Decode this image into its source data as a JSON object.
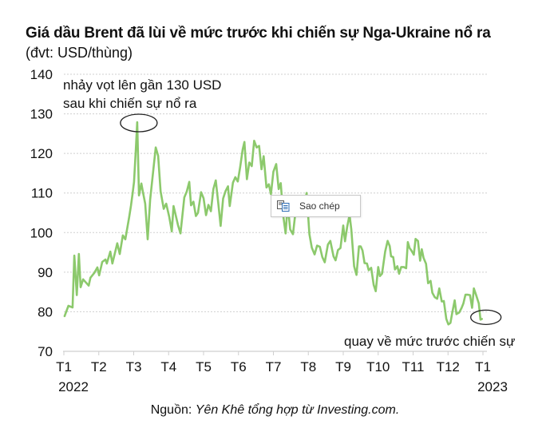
{
  "title": "Giá dầu Brent đã lùi về mức trước khi chiến sự Nga-Ukraine nổ ra",
  "subtitle": "(đvt: USD/thùng)",
  "source_prefix": "Nguồn: ",
  "source_text": "Yên Khê tổng hợp từ Investing.com.",
  "context_menu": {
    "icon": "copy-icon",
    "label": "Sao chép"
  },
  "chart_data": {
    "type": "line",
    "title": "Giá dầu Brent đã lùi về mức trước khi chiến sự Nga-Ukraine nổ ra",
    "ylabel": "(đvt: USD/thùng)",
    "xlabel": "",
    "ylim": [
      70,
      140
    ],
    "yticks": [
      70,
      80,
      90,
      100,
      110,
      120,
      130,
      140
    ],
    "xlim_months": [
      0,
      12
    ],
    "xticks": [
      {
        "m": 0,
        "label": "T1",
        "year": "2022"
      },
      {
        "m": 1,
        "label": "T2"
      },
      {
        "m": 2,
        "label": "T3"
      },
      {
        "m": 3,
        "label": "T4"
      },
      {
        "m": 4,
        "label": "T5"
      },
      {
        "m": 5,
        "label": "T6"
      },
      {
        "m": 6,
        "label": "T7"
      },
      {
        "m": 7,
        "label": "T8"
      },
      {
        "m": 8,
        "label": "T9"
      },
      {
        "m": 9,
        "label": "T10"
      },
      {
        "m": 10,
        "label": "T11"
      },
      {
        "m": 11,
        "label": "T12"
      },
      {
        "m": 12,
        "label": "T1",
        "year": "2023"
      }
    ],
    "grid": true,
    "series": [
      {
        "name": "Brent",
        "color": "#8cc96c",
        "points": [
          [
            0.02,
            78.9
          ],
          [
            0.13,
            81.5
          ],
          [
            0.25,
            81.1
          ],
          [
            0.3,
            94.2
          ],
          [
            0.37,
            84.2
          ],
          [
            0.43,
            94.6
          ],
          [
            0.48,
            86.2
          ],
          [
            0.55,
            88.2
          ],
          [
            0.71,
            86.6
          ],
          [
            0.76,
            88.6
          ],
          [
            0.87,
            89.8
          ],
          [
            0.96,
            91.2
          ],
          [
            1.01,
            89.2
          ],
          [
            1.1,
            92.6
          ],
          [
            1.19,
            93.2
          ],
          [
            1.23,
            92.2
          ],
          [
            1.33,
            95.2
          ],
          [
            1.39,
            92.2
          ],
          [
            1.53,
            97.3
          ],
          [
            1.6,
            94.6
          ],
          [
            1.69,
            99.3
          ],
          [
            1.76,
            98.3
          ],
          [
            1.87,
            103.9
          ],
          [
            1.92,
            106.7
          ],
          [
            1.97,
            110.0
          ],
          [
            2.01,
            112.8
          ],
          [
            2.06,
            120.8
          ],
          [
            2.1,
            127.9
          ],
          [
            2.15,
            109.4
          ],
          [
            2.22,
            112.4
          ],
          [
            2.26,
            110.4
          ],
          [
            2.33,
            107.3
          ],
          [
            2.4,
            98.3
          ],
          [
            2.47,
            108.3
          ],
          [
            2.58,
            117.4
          ],
          [
            2.63,
            121.5
          ],
          [
            2.7,
            119.4
          ],
          [
            2.77,
            110.4
          ],
          [
            2.86,
            106.0
          ],
          [
            2.93,
            107.3
          ],
          [
            3.02,
            103.9
          ],
          [
            3.09,
            100.3
          ],
          [
            3.14,
            106.7
          ],
          [
            3.2,
            104.5
          ],
          [
            3.27,
            101.8
          ],
          [
            3.34,
            99.8
          ],
          [
            3.45,
            108.9
          ],
          [
            3.52,
            110.4
          ],
          [
            3.59,
            112.8
          ],
          [
            3.64,
            106.9
          ],
          [
            3.71,
            107.8
          ],
          [
            3.78,
            104.2
          ],
          [
            3.84,
            105.0
          ],
          [
            3.93,
            110.2
          ],
          [
            4.0,
            108.7
          ],
          [
            4.07,
            104.4
          ],
          [
            4.14,
            107.0
          ],
          [
            4.21,
            105.4
          ],
          [
            4.28,
            111.0
          ],
          [
            4.35,
            113.2
          ],
          [
            4.42,
            107.5
          ],
          [
            4.49,
            101.7
          ],
          [
            4.56,
            108.6
          ],
          [
            4.63,
            110.5
          ],
          [
            4.7,
            111.7
          ],
          [
            4.75,
            106.7
          ],
          [
            4.84,
            112.6
          ],
          [
            4.91,
            114.0
          ],
          [
            4.98,
            112.9
          ],
          [
            5.05,
            116.6
          ],
          [
            5.12,
            121.0
          ],
          [
            5.17,
            122.9
          ],
          [
            5.24,
            113.5
          ],
          [
            5.31,
            117.7
          ],
          [
            5.38,
            116.8
          ],
          [
            5.45,
            123.2
          ],
          [
            5.52,
            121.5
          ],
          [
            5.59,
            121.9
          ],
          [
            5.66,
            116.0
          ],
          [
            5.72,
            119.3
          ],
          [
            5.8,
            111.4
          ],
          [
            5.87,
            112.2
          ],
          [
            5.93,
            109.7
          ],
          [
            6.0,
            115.4
          ],
          [
            6.08,
            117.3
          ],
          [
            6.15,
            111.0
          ],
          [
            6.21,
            112.5
          ],
          [
            6.28,
            104.3
          ],
          [
            6.35,
            99.8
          ],
          [
            6.41,
            107.2
          ],
          [
            6.48,
            100.8
          ],
          [
            6.56,
            99.6
          ],
          [
            6.62,
            104.2
          ],
          [
            6.7,
            106.7
          ],
          [
            6.79,
            104.7
          ],
          [
            6.87,
            106.4
          ],
          [
            6.95,
            110.0
          ],
          [
            7.03,
            99.6
          ],
          [
            7.1,
            96.2
          ],
          [
            7.18,
            94.5
          ],
          [
            7.25,
            96.7
          ],
          [
            7.33,
            96.4
          ],
          [
            7.4,
            93.8
          ],
          [
            7.47,
            92.5
          ],
          [
            7.56,
            97.0
          ],
          [
            7.63,
            97.9
          ],
          [
            7.72,
            94.0
          ],
          [
            7.78,
            93.0
          ],
          [
            7.85,
            95.6
          ],
          [
            7.92,
            96.1
          ],
          [
            8.0,
            101.8
          ],
          [
            8.05,
            97.8
          ],
          [
            8.11,
            101.3
          ],
          [
            8.18,
            104.5
          ],
          [
            8.23,
            100.8
          ],
          [
            8.31,
            91.5
          ],
          [
            8.38,
            89.3
          ],
          [
            8.45,
            96.5
          ],
          [
            8.5,
            96.5
          ],
          [
            8.55,
            95.5
          ],
          [
            8.61,
            92.3
          ],
          [
            8.68,
            92.2
          ],
          [
            8.73,
            90.5
          ],
          [
            8.8,
            91.1
          ],
          [
            8.87,
            86.8
          ],
          [
            8.93,
            85.2
          ],
          [
            9.0,
            91.3
          ],
          [
            9.05,
            89.0
          ],
          [
            9.11,
            89.6
          ],
          [
            9.2,
            95.2
          ],
          [
            9.27,
            97.9
          ],
          [
            9.33,
            96.6
          ],
          [
            9.37,
            94.0
          ],
          [
            9.43,
            93.8
          ],
          [
            9.48,
            90.7
          ],
          [
            9.55,
            91.5
          ],
          [
            9.6,
            89.6
          ],
          [
            9.66,
            91.3
          ],
          [
            9.73,
            91.3
          ],
          [
            9.8,
            91.0
          ],
          [
            9.85,
            97.6
          ],
          [
            9.9,
            96.1
          ],
          [
            9.95,
            95.5
          ],
          [
            10.02,
            94.4
          ],
          [
            10.07,
            98.4
          ],
          [
            10.14,
            97.9
          ],
          [
            10.2,
            92.9
          ],
          [
            10.25,
            95.8
          ],
          [
            10.3,
            93.6
          ],
          [
            10.37,
            92.1
          ],
          [
            10.43,
            87.2
          ],
          [
            10.5,
            87.8
          ],
          [
            10.55,
            84.8
          ],
          [
            10.62,
            83.7
          ],
          [
            10.69,
            83.3
          ],
          [
            10.75,
            85.9
          ],
          [
            10.82,
            82.6
          ],
          [
            10.88,
            82.7
          ],
          [
            10.95,
            78.2
          ],
          [
            11.01,
            76.8
          ],
          [
            11.07,
            77.2
          ],
          [
            11.12,
            79.7
          ],
          [
            11.19,
            82.9
          ],
          [
            11.24,
            79.4
          ],
          [
            11.32,
            79.8
          ],
          [
            11.39,
            81.0
          ],
          [
            11.44,
            82.1
          ],
          [
            11.5,
            84.3
          ],
          [
            11.57,
            84.3
          ],
          [
            11.63,
            84.2
          ],
          [
            11.69,
            81.0
          ],
          [
            11.74,
            85.9
          ],
          [
            11.8,
            84.3
          ],
          [
            11.88,
            82.1
          ],
          [
            11.93,
            78.0
          ],
          [
            11.97,
            78.2
          ]
        ]
      }
    ],
    "annotations": [
      {
        "text_lines": [
          "nhảy vọt lên gần 130 USD",
          "sau khi chiến sự nổ ra"
        ],
        "target": [
          2.1,
          127.9
        ],
        "shape": "ellipse"
      },
      {
        "text_lines": [
          "quay về mức trước chiến sự"
        ],
        "target": [
          11.97,
          78.2
        ],
        "shape": "ellipse"
      }
    ]
  }
}
